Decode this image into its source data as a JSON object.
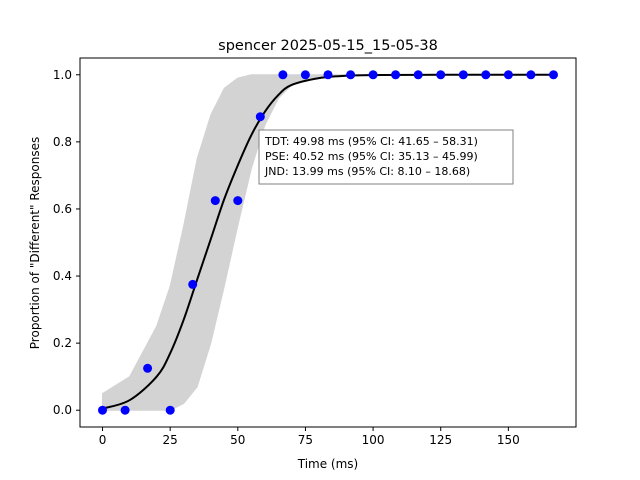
{
  "chart_data": {
    "type": "scatter",
    "title": "spencer 2025-05-15_15-05-38",
    "xlabel": "Time (ms)",
    "ylabel": "Proportion of \"Different\" Responses",
    "xlim": [
      -8.33,
      175
    ],
    "ylim": [
      -0.05,
      1.05
    ],
    "xticks": [
      0,
      25,
      50,
      75,
      100,
      125,
      150
    ],
    "yticks": [
      0.0,
      0.2,
      0.4,
      0.6,
      0.8,
      1.0
    ],
    "ytick_labels": [
      "0.0",
      "0.2",
      "0.4",
      "0.6",
      "0.8",
      "1.0"
    ],
    "grid": false,
    "points": {
      "color": "#0000ff",
      "x": [
        0,
        8.33,
        16.67,
        25,
        33.33,
        41.67,
        50,
        58.33,
        66.67,
        75,
        83.33,
        91.67,
        100,
        108.33,
        116.67,
        125,
        133.33,
        141.67,
        150,
        158.33,
        166.67
      ],
      "y": [
        0,
        0,
        0.125,
        0,
        0.375,
        0.625,
        0.625,
        0.875,
        1,
        1,
        1,
        1,
        1,
        1,
        1,
        1,
        1,
        1,
        1,
        1,
        1
      ]
    },
    "fit_curve": {
      "color": "#000000",
      "x": [
        0,
        10,
        20,
        25,
        30,
        35,
        40,
        45,
        50,
        55,
        60,
        65,
        70,
        80,
        90,
        100,
        125,
        150,
        167
      ],
      "y": [
        0.005,
        0.03,
        0.1,
        0.17,
        0.27,
        0.39,
        0.51,
        0.63,
        0.73,
        0.82,
        0.89,
        0.94,
        0.97,
        0.99,
        0.997,
        0.999,
        1,
        1,
        1
      ]
    },
    "bootstrap_band": {
      "color": "#d3d3d3",
      "x": [
        0,
        10,
        20,
        25,
        30,
        35,
        40,
        45,
        50,
        55,
        60,
        65,
        70,
        80,
        90,
        100,
        125,
        150,
        167
      ],
      "upper": [
        0.05,
        0.1,
        0.25,
        0.37,
        0.55,
        0.75,
        0.88,
        0.96,
        0.99,
        1,
        1,
        1,
        1,
        1,
        1,
        1,
        1,
        1,
        1
      ],
      "lower": [
        0,
        0,
        0,
        0,
        0.02,
        0.07,
        0.2,
        0.37,
        0.55,
        0.72,
        0.85,
        0.93,
        0.97,
        0.99,
        1,
        1,
        1,
        1,
        1
      ]
    },
    "annotation": [
      "TDT: 49.98 ms (95% CI: 41.65 – 58.31)",
      "PSE: 40.52 ms (95% CI: 35.13 – 45.99)",
      "JND: 13.99 ms (95% CI: 8.10 – 18.68)"
    ]
  }
}
